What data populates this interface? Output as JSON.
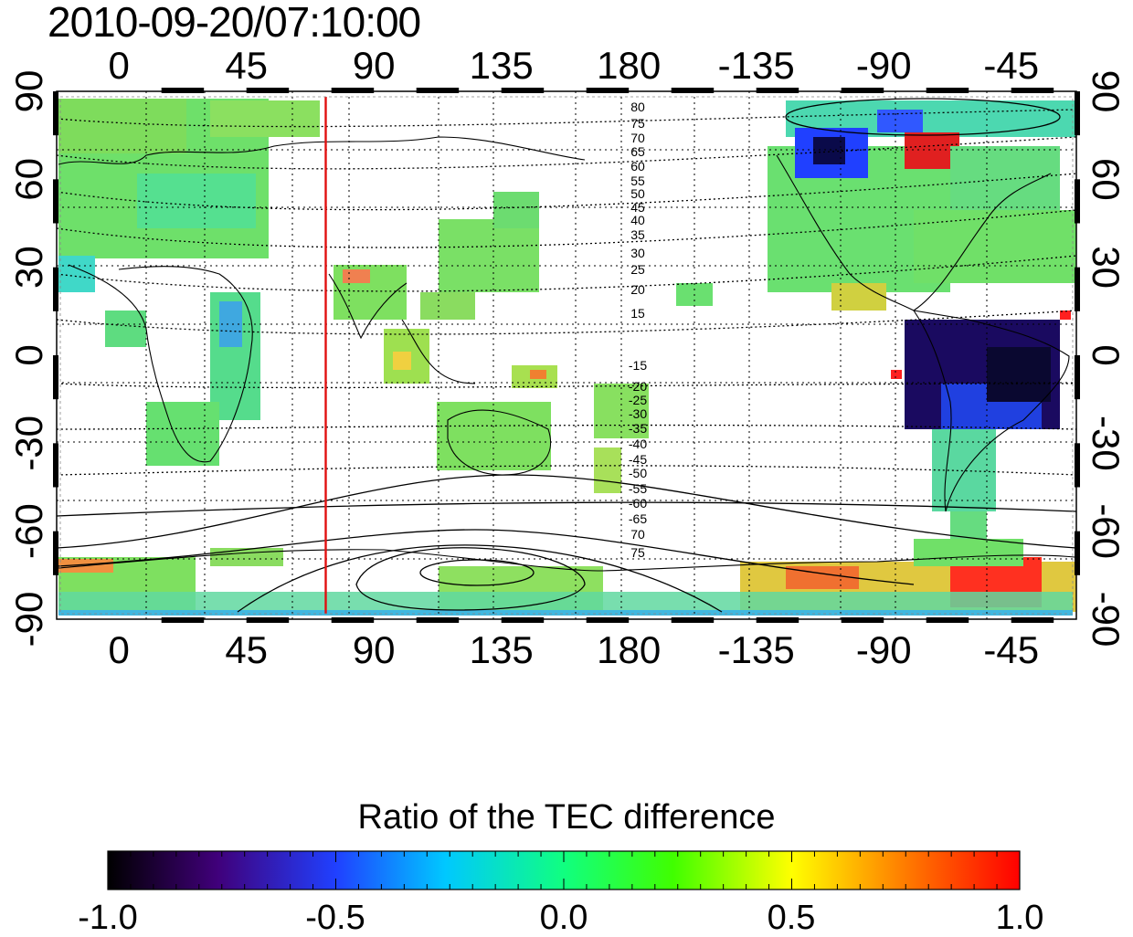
{
  "title": "2010-09-20/07:10:00",
  "map": {
    "lon_ticks": [
      "0",
      "45",
      "90",
      "135",
      "180",
      "-135",
      "-90",
      "-45"
    ],
    "lat_ticks": [
      "90",
      "60",
      "30",
      "0",
      "-30",
      "-60",
      "-90"
    ],
    "contour_labels_north": [
      "80",
      "75",
      "70",
      "65",
      "60",
      "55",
      "50",
      "45",
      "40",
      "35",
      "30",
      "25",
      "20",
      "15"
    ],
    "contour_labels_south": [
      "-15",
      "-20",
      "-25",
      "-30",
      "-35",
      "-40",
      "-45",
      "-50",
      "-55",
      "-60",
      "-65",
      "70",
      "75"
    ],
    "marker_longitude": 73,
    "marker_color": "#e01010"
  },
  "colorbar": {
    "title": "Ratio of the TEC difference",
    "labels": [
      "-1.0",
      "-0.5",
      "0.0",
      "0.5",
      "1.0"
    ],
    "range": [
      -1.0,
      1.0
    ],
    "colors": [
      "#000000",
      "#40007a",
      "#2040ff",
      "#00c8ff",
      "#10ff80",
      "#40ff00",
      "#ffff00",
      "#ff8000",
      "#ff0000"
    ]
  }
}
